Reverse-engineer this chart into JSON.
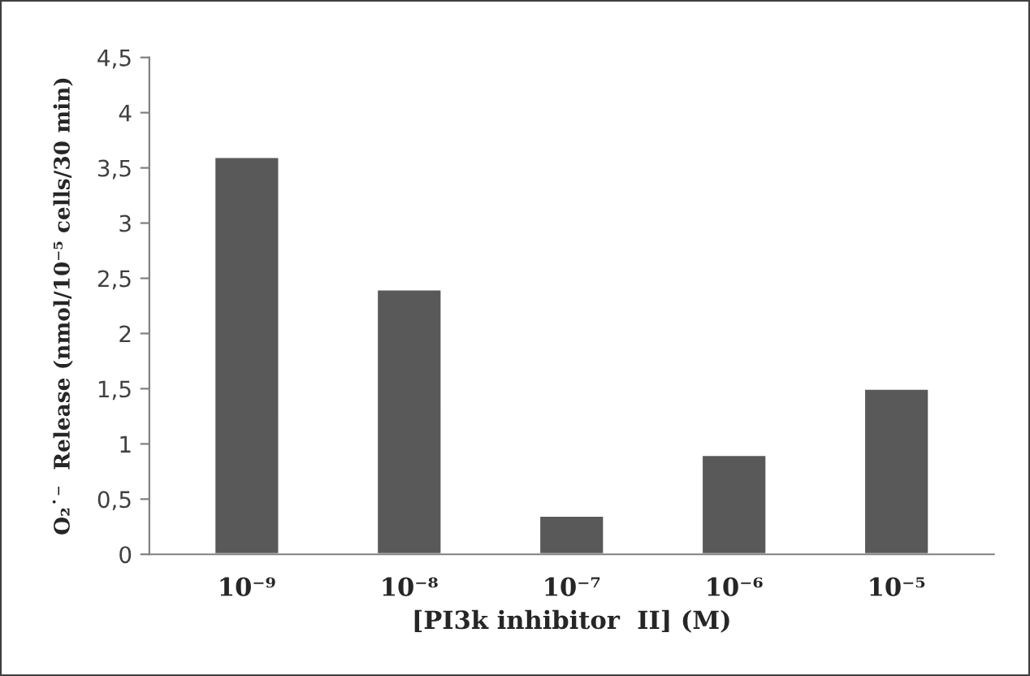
{
  "chart_data": {
    "type": "bar",
    "xlabel": "[PI3k inhibitor  II] (M)",
    "ylabel": "O₂˙⁻  Release (nmol/10⁻⁵ cells/30 min)",
    "categories": [
      "10⁻⁹",
      "10⁻⁸",
      "10⁻⁷",
      "10⁻⁶",
      "10⁻⁵"
    ],
    "values": [
      3.6,
      2.4,
      0.35,
      0.9,
      1.5
    ],
    "color": "#595959",
    "ylim": [
      0,
      4.5
    ],
    "yticks": [
      0,
      {
        "value": 0.5,
        "label": "0,5"
      },
      1,
      {
        "value": 1.5,
        "label": "1,5"
      },
      2,
      {
        "value": 2.5,
        "label": "2,5"
      },
      3,
      {
        "value": 3.5,
        "label": "3,5"
      },
      4,
      {
        "value": 4.5,
        "label": "4,5"
      }
    ],
    "grid": false
  }
}
